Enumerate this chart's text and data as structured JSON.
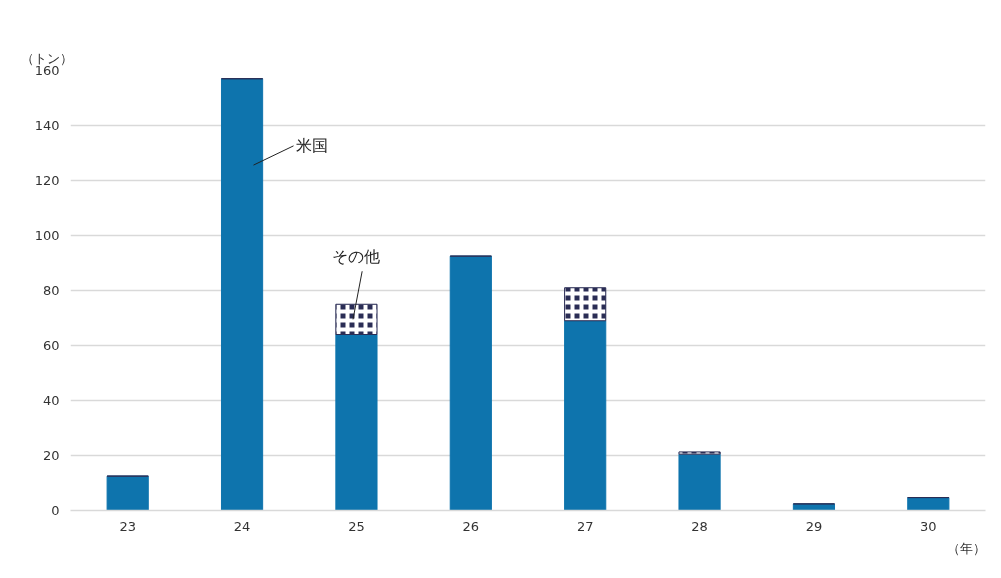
{
  "chart_data": {
    "type": "bar",
    "stacked": true,
    "xlabel": "（年）",
    "ylabel": "（トン）",
    "categories": [
      "23",
      "24",
      "25",
      "26",
      "27",
      "28",
      "29",
      "30"
    ],
    "series": [
      {
        "name": "米国",
        "color": "#0e74ad",
        "values": [
          12.5,
          157,
          64,
          92.5,
          69,
          20.5,
          2.4,
          4.7
        ]
      },
      {
        "name": "その他",
        "color": "#2a2d55",
        "values": [
          0,
          0,
          11,
          0,
          12,
          0.8,
          0,
          0
        ]
      }
    ],
    "ylim": [
      0,
      160
    ],
    "yticks": [
      0,
      20,
      40,
      60,
      80,
      100,
      120,
      140,
      160
    ],
    "grid": "y"
  }
}
